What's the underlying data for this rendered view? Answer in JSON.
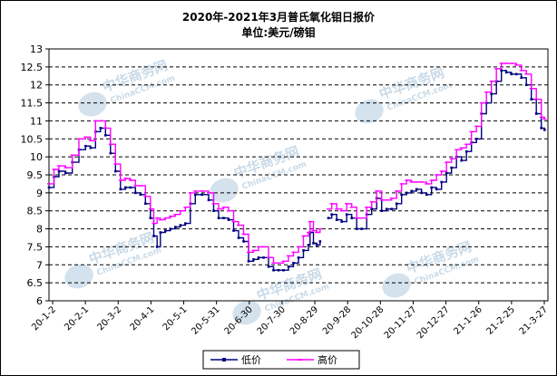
{
  "chart_data": {
    "type": "line",
    "title": "2020年-2021年3月普氏氧化钼日报价",
    "subtitle": "单位:美元/磅钼",
    "ylim": [
      6,
      13
    ],
    "yticks": [
      "6",
      "6.5",
      "7",
      "7.5",
      "8",
      "8.5",
      "9",
      "9.5",
      "10",
      "10.5",
      "11",
      "11.5",
      "12",
      "12.5",
      "13"
    ],
    "xticks": [
      "20-1-2",
      "20-2-1",
      "20-3-2",
      "20-4-1",
      "20-5-1",
      "20-5-31",
      "20-6-30",
      "20-7-30",
      "20-8-29",
      "20-9-28",
      "20-10-28",
      "20-11-27",
      "20-12-27",
      "21-1-26",
      "21-2-25",
      "21-3-27"
    ],
    "grid": true,
    "legend_position": "bottom",
    "watermarks": [
      "中华商务网",
      "ChinaCCM.com",
      "中华商务网",
      "ChinaCCM.com",
      "中华商务网",
      "ChinaCCM.com",
      "中华商务网",
      "ChinaCCM.com",
      "中华商务网",
      "ChinaCCM.com",
      "中华商务网",
      "ChinaCCM.com"
    ],
    "series": [
      {
        "name": "低价",
        "color": "#000080",
        "points": [
          [
            0,
            9.15
          ],
          [
            3,
            9.45
          ],
          [
            6,
            9.6
          ],
          [
            10,
            9.55
          ],
          [
            14,
            9.85
          ],
          [
            18,
            10.2
          ],
          [
            22,
            10.3
          ],
          [
            25,
            10.25
          ],
          [
            28,
            10.7
          ],
          [
            31,
            10.8
          ],
          [
            34,
            10.6
          ],
          [
            37,
            10.1
          ],
          [
            40,
            9.6
          ],
          [
            43,
            9.1
          ],
          [
            46,
            9.15
          ],
          [
            49,
            9.15
          ],
          [
            52,
            9.0
          ],
          [
            55,
            8.95
          ],
          [
            58,
            8.7
          ],
          [
            61,
            8.3
          ],
          [
            63,
            7.8
          ],
          [
            65,
            7.5
          ],
          [
            67,
            7.9
          ],
          [
            70,
            7.95
          ],
          [
            73,
            8.0
          ],
          [
            76,
            8.05
          ],
          [
            79,
            8.1
          ],
          [
            82,
            8.15
          ],
          [
            85,
            8.7
          ],
          [
            88,
            8.95
          ],
          [
            92,
            8.95
          ],
          [
            96,
            8.8
          ],
          [
            99,
            8.5
          ],
          [
            102,
            8.3
          ],
          [
            105,
            8.3
          ],
          [
            108,
            8.25
          ],
          [
            111,
            7.95
          ],
          [
            114,
            7.75
          ],
          [
            117,
            7.65
          ],
          [
            120,
            7.1
          ],
          [
            123,
            7.15
          ],
          [
            126,
            7.2
          ],
          [
            129,
            7.2
          ],
          [
            132,
            6.95
          ],
          [
            135,
            6.85
          ],
          [
            138,
            6.85
          ],
          [
            141,
            6.85
          ],
          [
            144,
            6.95
          ],
          [
            147,
            7.05
          ],
          [
            150,
            7.2
          ],
          [
            153,
            7.4
          ],
          [
            156,
            7.55
          ],
          [
            157,
            7.9
          ],
          [
            159,
            7.6
          ],
          [
            161,
            7.55
          ],
          [
            163,
            7.65
          ]
        ],
        "points2": [
          [
            168,
            8.3
          ],
          [
            170,
            8.4
          ],
          [
            173,
            8.25
          ],
          [
            176,
            8.2
          ],
          [
            179,
            8.4
          ],
          [
            182,
            8.3
          ],
          [
            185,
            8.0
          ],
          [
            188,
            8.0
          ],
          [
            191,
            8.4
          ],
          [
            194,
            8.55
          ],
          [
            197,
            8.85
          ],
          [
            200,
            8.5
          ],
          [
            203,
            8.55
          ],
          [
            206,
            8.55
          ],
          [
            209,
            8.7
          ],
          [
            212,
            8.95
          ],
          [
            215,
            9.0
          ],
          [
            218,
            9.05
          ],
          [
            221,
            9.1
          ],
          [
            224,
            9.0
          ],
          [
            227,
            8.95
          ],
          [
            230,
            9.15
          ],
          [
            233,
            9.1
          ],
          [
            236,
            9.3
          ],
          [
            239,
            9.55
          ],
          [
            242,
            9.7
          ],
          [
            245,
            10.0
          ],
          [
            248,
            9.9
          ],
          [
            251,
            10.15
          ],
          [
            254,
            10.4
          ],
          [
            257,
            10.5
          ],
          [
            260,
            11.2
          ],
          [
            263,
            11.5
          ],
          [
            266,
            11.75
          ],
          [
            269,
            12.1
          ],
          [
            272,
            12.4
          ],
          [
            275,
            12.35
          ],
          [
            278,
            12.3
          ],
          [
            281,
            12.3
          ],
          [
            284,
            12.2
          ],
          [
            287,
            12.0
          ],
          [
            290,
            11.6
          ],
          [
            293,
            11.2
          ],
          [
            296,
            10.8
          ],
          [
            298,
            10.75
          ]
        ]
      },
      {
        "name": "高价",
        "color": "#ff00ff",
        "points": [
          [
            0,
            9.25
          ],
          [
            3,
            9.65
          ],
          [
            6,
            9.75
          ],
          [
            10,
            9.7
          ],
          [
            14,
            10.05
          ],
          [
            18,
            10.5
          ],
          [
            22,
            10.55
          ],
          [
            25,
            10.45
          ],
          [
            28,
            11.0
          ],
          [
            31,
            11.0
          ],
          [
            34,
            10.8
          ],
          [
            37,
            10.35
          ],
          [
            40,
            9.8
          ],
          [
            43,
            9.35
          ],
          [
            46,
            9.4
          ],
          [
            49,
            9.35
          ],
          [
            52,
            9.2
          ],
          [
            55,
            9.2
          ],
          [
            58,
            8.9
          ],
          [
            61,
            8.55
          ],
          [
            63,
            8.15
          ],
          [
            65,
            8.3
          ],
          [
            67,
            8.25
          ],
          [
            70,
            8.3
          ],
          [
            73,
            8.35
          ],
          [
            76,
            8.4
          ],
          [
            79,
            8.5
          ],
          [
            82,
            8.6
          ],
          [
            85,
            9.0
          ],
          [
            88,
            9.05
          ],
          [
            92,
            9.05
          ],
          [
            96,
            9.0
          ],
          [
            99,
            8.7
          ],
          [
            102,
            8.55
          ],
          [
            105,
            8.6
          ],
          [
            108,
            8.5
          ],
          [
            111,
            8.2
          ],
          [
            114,
            8.1
          ],
          [
            117,
            7.85
          ],
          [
            120,
            7.35
          ],
          [
            123,
            7.4
          ],
          [
            126,
            7.5
          ],
          [
            129,
            7.5
          ],
          [
            132,
            7.2
          ],
          [
            135,
            7.05
          ],
          [
            138,
            7.05
          ],
          [
            141,
            7.1
          ],
          [
            144,
            7.25
          ],
          [
            147,
            7.35
          ],
          [
            150,
            7.5
          ],
          [
            153,
            7.8
          ],
          [
            156,
            7.9
          ],
          [
            157,
            8.2
          ],
          [
            159,
            7.95
          ],
          [
            161,
            7.9
          ],
          [
            163,
            8.0
          ]
        ],
        "points2": [
          [
            168,
            8.55
          ],
          [
            170,
            8.7
          ],
          [
            173,
            8.55
          ],
          [
            176,
            8.5
          ],
          [
            179,
            8.7
          ],
          [
            182,
            8.6
          ],
          [
            185,
            8.3
          ],
          [
            188,
            8.3
          ],
          [
            191,
            8.6
          ],
          [
            194,
            8.75
          ],
          [
            197,
            9.05
          ],
          [
            200,
            8.8
          ],
          [
            203,
            8.8
          ],
          [
            206,
            8.85
          ],
          [
            209,
            9.05
          ],
          [
            212,
            9.25
          ],
          [
            215,
            9.35
          ],
          [
            218,
            9.3
          ],
          [
            221,
            9.3
          ],
          [
            224,
            9.3
          ],
          [
            227,
            9.25
          ],
          [
            230,
            9.35
          ],
          [
            233,
            9.5
          ],
          [
            236,
            9.6
          ],
          [
            239,
            9.85
          ],
          [
            242,
            9.95
          ],
          [
            245,
            10.2
          ],
          [
            248,
            10.25
          ],
          [
            251,
            10.35
          ],
          [
            254,
            10.7
          ],
          [
            257,
            10.85
          ],
          [
            260,
            11.5
          ],
          [
            263,
            11.8
          ],
          [
            266,
            12.1
          ],
          [
            269,
            12.45
          ],
          [
            272,
            12.6
          ],
          [
            275,
            12.6
          ],
          [
            278,
            12.6
          ],
          [
            281,
            12.55
          ],
          [
            284,
            12.4
          ],
          [
            287,
            12.3
          ],
          [
            290,
            11.9
          ],
          [
            293,
            11.6
          ],
          [
            296,
            11.1
          ],
          [
            298,
            11.05
          ]
        ]
      }
    ],
    "x_max": 300
  }
}
